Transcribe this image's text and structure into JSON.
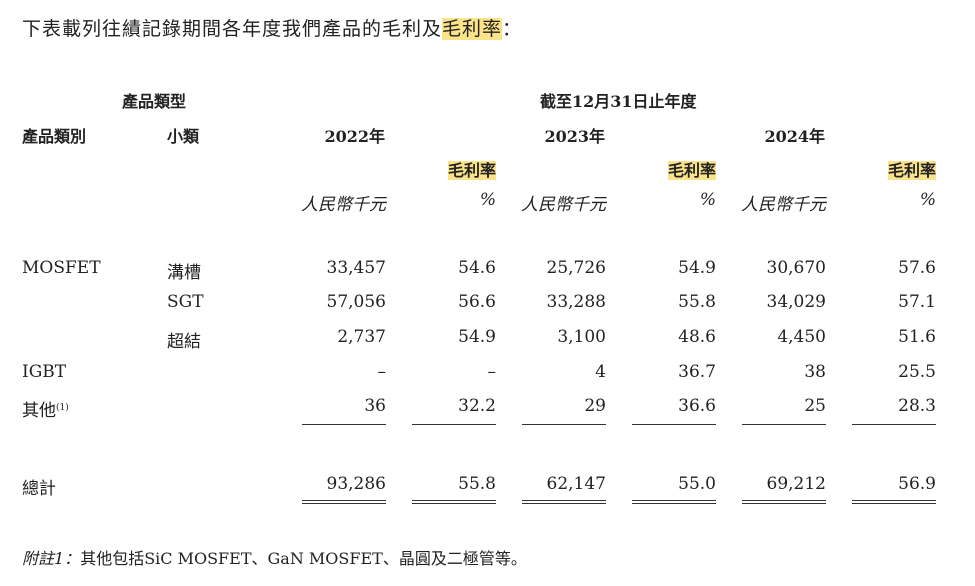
{
  "intro": {
    "text": "下表載列往績記錄期間各年度我們產品的毛利及",
    "highlight": "毛利率",
    "end": "："
  },
  "header": {
    "product_type_group": "產品類型",
    "period": "截至12月31日止年度",
    "col_category": "產品類別",
    "col_subcategory": "小類",
    "years": [
      "2022年",
      "2023年",
      "2024年"
    ],
    "margin_label": "毛利率",
    "unit_rmb": "人民幣千元",
    "unit_pct": "%"
  },
  "rows": [
    {
      "category": "MOSFET",
      "sub": "溝槽",
      "v": [
        "33,457",
        "54.6",
        "25,726",
        "54.9",
        "30,670",
        "57.6"
      ]
    },
    {
      "category": "",
      "sub": "SGT",
      "v": [
        "57,056",
        "56.6",
        "33,288",
        "55.8",
        "34,029",
        "57.1"
      ]
    },
    {
      "category": "",
      "sub": "超結",
      "v": [
        "2,737",
        "54.9",
        "3,100",
        "48.6",
        "4,450",
        "51.6"
      ]
    },
    {
      "category": "IGBT",
      "sub": "",
      "v": [
        "–",
        "–",
        "4",
        "36.7",
        "38",
        "25.5"
      ]
    },
    {
      "category": "其他",
      "note_mark": "(1)",
      "sub": "",
      "v": [
        "36",
        "32.2",
        "29",
        "36.6",
        "25",
        "28.3"
      ]
    }
  ],
  "total": {
    "label": "總計",
    "v": [
      "93,286",
      "55.8",
      "62,147",
      "55.0",
      "69,212",
      "56.9"
    ]
  },
  "footnote": {
    "label": "附註1：",
    "text": "其他包括SiC MOSFET、GaN MOSFET、晶圓及二極管等。"
  }
}
